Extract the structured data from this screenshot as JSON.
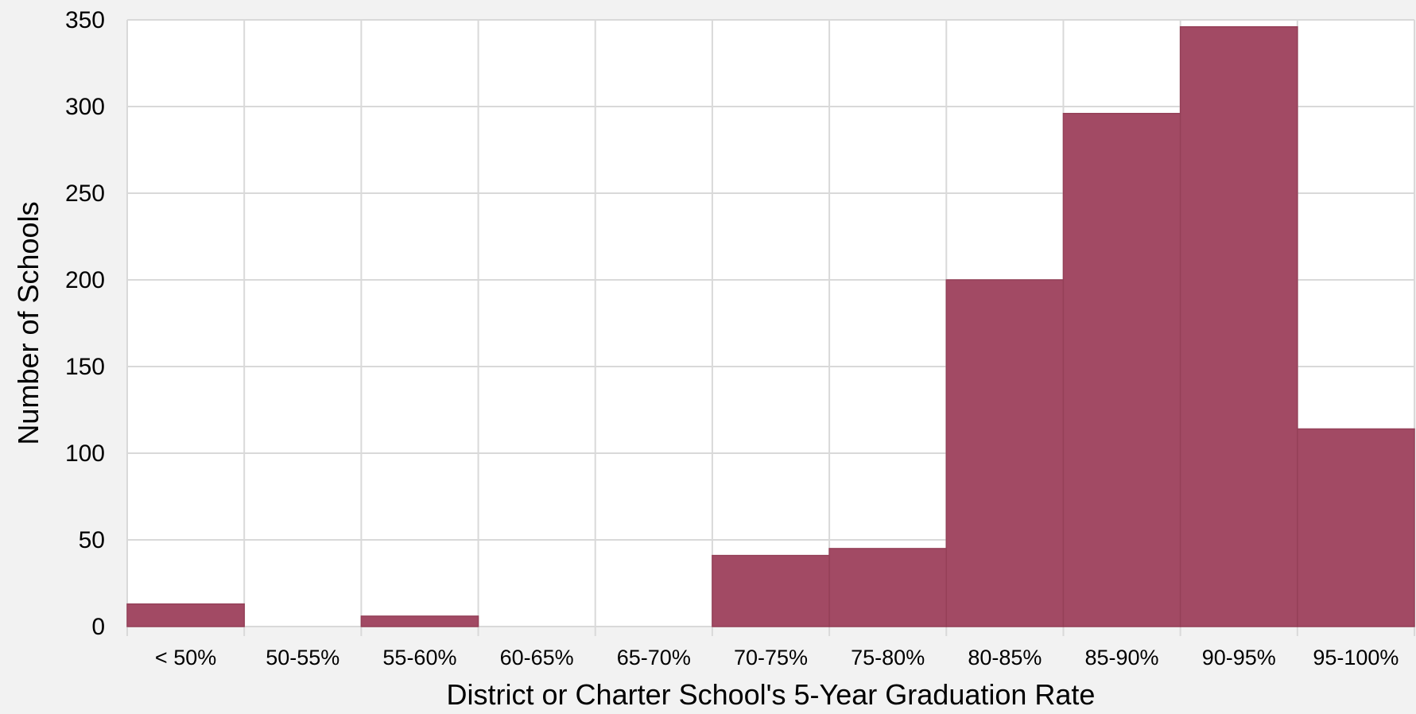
{
  "chart_data": {
    "type": "bar",
    "categories": [
      "< 50%",
      "50-55%",
      "55-60%",
      "60-65%",
      "65-70%",
      "70-75%",
      "75-80%",
      "80-85%",
      "85-90%",
      "90-95%",
      "95-100%"
    ],
    "values": [
      13,
      0,
      6,
      0,
      0,
      41,
      45,
      200,
      296,
      346,
      114
    ],
    "xlabel": "District or Charter School's 5-Year Graduation Rate",
    "ylabel": "Number of  Schools",
    "ylim": [
      0,
      350
    ],
    "yticks": [
      "0",
      "50",
      "100",
      "150",
      "200",
      "250",
      "300",
      "350"
    ],
    "grid": true,
    "colors": {
      "bar": "#a24a64",
      "bar_edge": "#954058",
      "plot_background": "#ffffff",
      "page_background": "#f2f2f2",
      "grid": "#d9d9d9"
    }
  }
}
